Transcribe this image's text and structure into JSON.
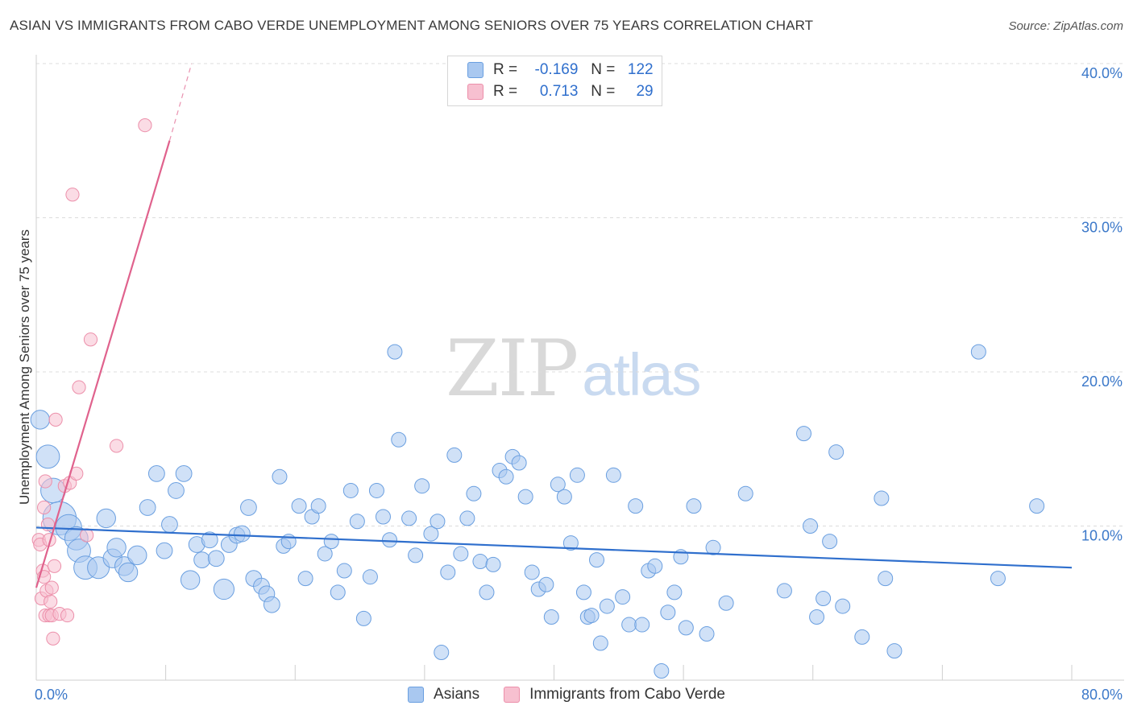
{
  "title": "ASIAN VS IMMIGRANTS FROM CABO VERDE UNEMPLOYMENT AMONG SENIORS OVER 75 YEARS CORRELATION CHART",
  "source": "Source: ZipAtlas.com",
  "watermark": {
    "zip": "ZIP",
    "atlas": "atlas"
  },
  "legend_top": [
    {
      "r_label": "R =",
      "r_value": "-0.169",
      "n_label": "N =",
      "n_value": "122"
    },
    {
      "r_label": "R =",
      "r_value": "0.713",
      "n_label": "N =",
      "n_value": "29"
    }
  ],
  "legend_bottom": [
    {
      "label": "Asians"
    },
    {
      "label": "Immigrants from Cabo Verde"
    }
  ],
  "colors": {
    "asian_fill": "#a9c8f0",
    "asian_stroke": "#6a9fe0",
    "asian_line": "#2f6fcd",
    "cabo_fill": "#f7c0d0",
    "cabo_stroke": "#ec8faa",
    "cabo_line": "#e0628d",
    "tick": "#3b78c9",
    "grid": "#dcdcdc"
  },
  "chart_data": {
    "type": "scatter",
    "title": "ASIAN VS IMMIGRANTS FROM CABO VERDE UNEMPLOYMENT AMONG SENIORS OVER 75 YEARS CORRELATION CHART",
    "xlabel": "",
    "ylabel": "Unemployment Among Seniors over 75 years",
    "xlim": [
      0,
      80
    ],
    "ylim": [
      0,
      40
    ],
    "x_tick_labels": [
      "0.0%",
      "80.0%"
    ],
    "y_ticks": [
      10,
      20,
      30,
      40
    ],
    "y_tick_labels": [
      "10.0%",
      "20.0%",
      "30.0%",
      "40.0%"
    ],
    "series": [
      {
        "name": "Asians",
        "r": -0.169,
        "n": 122,
        "trend": {
          "x": [
            0,
            80
          ],
          "y": [
            9.9,
            7.3
          ]
        },
        "points": [
          [
            0.3,
            16.9,
            1.3
          ],
          [
            0.9,
            14.5,
            1.6
          ],
          [
            1.3,
            12.3,
            1.7
          ],
          [
            1.8,
            10.5,
            2.3
          ],
          [
            2.5,
            9.9,
            1.8
          ],
          [
            3.1,
            9.2,
            1.6
          ],
          [
            3.3,
            8.4,
            1.6
          ],
          [
            3.8,
            7.3,
            1.6
          ],
          [
            4.8,
            7.3,
            1.5
          ],
          [
            5.4,
            10.5,
            1.3
          ],
          [
            5.9,
            7.9,
            1.3
          ],
          [
            6.2,
            8.6,
            1.3
          ],
          [
            6.8,
            7.4,
            1.3
          ],
          [
            7.1,
            7.0,
            1.3
          ],
          [
            7.8,
            8.1,
            1.3
          ],
          [
            8.6,
            11.2,
            1.1
          ],
          [
            9.3,
            13.4,
            1.1
          ],
          [
            9.9,
            8.4,
            1.1
          ],
          [
            10.3,
            10.1,
            1.1
          ],
          [
            10.8,
            12.3,
            1.1
          ],
          [
            11.4,
            13.4,
            1.1
          ],
          [
            11.9,
            6.5,
            1.3
          ],
          [
            12.4,
            8.8,
            1.1
          ],
          [
            12.8,
            7.8,
            1.1
          ],
          [
            13.4,
            9.1,
            1.1
          ],
          [
            13.9,
            7.9,
            1.1
          ],
          [
            14.5,
            5.9,
            1.4
          ],
          [
            14.9,
            8.8,
            1.1
          ],
          [
            15.5,
            9.4,
            1.1
          ],
          [
            15.9,
            9.5,
            1.1
          ],
          [
            16.4,
            11.2,
            1.1
          ],
          [
            16.8,
            6.6,
            1.1
          ],
          [
            17.4,
            6.1,
            1.1
          ],
          [
            17.8,
            5.6,
            1.1
          ],
          [
            18.2,
            4.9,
            1.1
          ],
          [
            18.8,
            13.2,
            1.0
          ],
          [
            19.1,
            8.7,
            1.0
          ],
          [
            19.5,
            9.0,
            1.0
          ],
          [
            20.3,
            11.3,
            1.0
          ],
          [
            20.8,
            6.6,
            1.0
          ],
          [
            21.3,
            10.6,
            1.0
          ],
          [
            21.8,
            11.3,
            1.0
          ],
          [
            22.3,
            8.2,
            1.0
          ],
          [
            22.8,
            9.0,
            1.0
          ],
          [
            23.3,
            5.7,
            1.0
          ],
          [
            23.8,
            7.1,
            1.0
          ],
          [
            24.3,
            12.3,
            1.0
          ],
          [
            24.8,
            10.3,
            1.0
          ],
          [
            25.3,
            4.0,
            1.0
          ],
          [
            25.8,
            6.7,
            1.0
          ],
          [
            26.3,
            12.3,
            1.0
          ],
          [
            26.8,
            10.6,
            1.0
          ],
          [
            27.3,
            9.1,
            1.0
          ],
          [
            27.7,
            21.3,
            1.0
          ],
          [
            28.0,
            15.6,
            1.0
          ],
          [
            28.8,
            10.5,
            1.0
          ],
          [
            29.3,
            8.1,
            1.0
          ],
          [
            29.8,
            12.6,
            1.0
          ],
          [
            30.5,
            9.5,
            1.0
          ],
          [
            31.0,
            10.3,
            1.0
          ],
          [
            31.3,
            1.8,
            1.0
          ],
          [
            31.8,
            7.0,
            1.0
          ],
          [
            32.3,
            14.6,
            1.0
          ],
          [
            32.8,
            8.2,
            1.0
          ],
          [
            33.3,
            10.5,
            1.0
          ],
          [
            33.8,
            12.1,
            1.0
          ],
          [
            34.3,
            7.7,
            1.0
          ],
          [
            34.8,
            5.7,
            1.0
          ],
          [
            35.3,
            7.5,
            1.0
          ],
          [
            35.8,
            13.6,
            1.0
          ],
          [
            36.3,
            13.2,
            1.0
          ],
          [
            36.8,
            14.5,
            1.0
          ],
          [
            37.3,
            14.1,
            1.0
          ],
          [
            37.8,
            11.9,
            1.0
          ],
          [
            38.3,
            7.0,
            1.0
          ],
          [
            38.8,
            5.9,
            1.0
          ],
          [
            39.4,
            6.2,
            1.0
          ],
          [
            39.8,
            4.1,
            1.0
          ],
          [
            40.3,
            12.7,
            1.0
          ],
          [
            40.8,
            11.9,
            1.0
          ],
          [
            41.3,
            8.9,
            1.0
          ],
          [
            41.8,
            13.3,
            1.0
          ],
          [
            42.3,
            5.7,
            1.0
          ],
          [
            42.6,
            4.1,
            1.0
          ],
          [
            42.9,
            4.2,
            1.0
          ],
          [
            43.3,
            7.8,
            1.0
          ],
          [
            43.6,
            2.4,
            1.0
          ],
          [
            44.1,
            4.8,
            1.0
          ],
          [
            44.6,
            13.3,
            1.0
          ],
          [
            45.3,
            5.4,
            1.0
          ],
          [
            45.8,
            3.6,
            1.0
          ],
          [
            46.3,
            11.3,
            1.0
          ],
          [
            46.8,
            3.6,
            1.0
          ],
          [
            47.3,
            7.1,
            1.0
          ],
          [
            47.8,
            7.4,
            1.0
          ],
          [
            48.3,
            0.6,
            1.0
          ],
          [
            48.8,
            4.4,
            1.0
          ],
          [
            49.3,
            5.7,
            1.0
          ],
          [
            49.8,
            8.0,
            1.0
          ],
          [
            50.2,
            3.4,
            1.0
          ],
          [
            50.8,
            11.3,
            1.0
          ],
          [
            51.8,
            3.0,
            1.0
          ],
          [
            52.3,
            8.6,
            1.0
          ],
          [
            53.3,
            5.0,
            1.0
          ],
          [
            54.8,
            12.1,
            1.0
          ],
          [
            57.8,
            5.8,
            1.0
          ],
          [
            59.3,
            16.0,
            1.0
          ],
          [
            59.8,
            10.0,
            1.0
          ],
          [
            60.3,
            4.1,
            1.0
          ],
          [
            60.8,
            5.3,
            1.0
          ],
          [
            61.3,
            9.0,
            1.0
          ],
          [
            61.8,
            14.8,
            1.0
          ],
          [
            62.3,
            4.8,
            1.0
          ],
          [
            63.8,
            2.8,
            1.0
          ],
          [
            65.3,
            11.8,
            1.0
          ],
          [
            65.6,
            6.6,
            1.0
          ],
          [
            66.3,
            1.9,
            1.0
          ],
          [
            72.8,
            21.3,
            1.0
          ],
          [
            74.3,
            6.6,
            1.0
          ],
          [
            77.3,
            11.3,
            1.0
          ]
        ]
      },
      {
        "name": "Immigrants from Cabo Verde",
        "r": 0.713,
        "n": 29,
        "trend": {
          "x": [
            0,
            10.3
          ],
          "y": [
            6.0,
            35.0
          ],
          "dashed_x": [
            10.3,
            12.0
          ],
          "dashed_y": [
            35.0,
            40.0
          ]
        },
        "points": [
          [
            0.2,
            9.1,
            0.9
          ],
          [
            0.3,
            8.8,
            0.9
          ],
          [
            0.4,
            5.3,
            0.9
          ],
          [
            0.5,
            7.1,
            0.9
          ],
          [
            0.6,
            6.7,
            0.9
          ],
          [
            0.6,
            11.2,
            0.9
          ],
          [
            0.7,
            4.2,
            0.9
          ],
          [
            0.7,
            12.9,
            0.9
          ],
          [
            0.8,
            5.8,
            0.9
          ],
          [
            0.9,
            10.1,
            0.9
          ],
          [
            1.0,
            4.2,
            0.9
          ],
          [
            1.0,
            9.1,
            0.9
          ],
          [
            1.1,
            5.1,
            0.9
          ],
          [
            1.2,
            6.0,
            0.9
          ],
          [
            1.2,
            4.2,
            0.9
          ],
          [
            1.3,
            2.7,
            0.9
          ],
          [
            1.4,
            7.4,
            0.9
          ],
          [
            1.5,
            16.9,
            0.9
          ],
          [
            1.8,
            4.3,
            0.9
          ],
          [
            2.2,
            12.6,
            0.9
          ],
          [
            2.4,
            4.2,
            0.9
          ],
          [
            2.6,
            12.8,
            0.9
          ],
          [
            2.8,
            31.5,
            0.9
          ],
          [
            3.1,
            13.4,
            0.9
          ],
          [
            3.3,
            19.0,
            0.9
          ],
          [
            3.9,
            9.4,
            0.9
          ],
          [
            4.2,
            22.1,
            0.9
          ],
          [
            6.2,
            15.2,
            0.9
          ],
          [
            8.4,
            36.0,
            0.9
          ]
        ]
      }
    ]
  }
}
